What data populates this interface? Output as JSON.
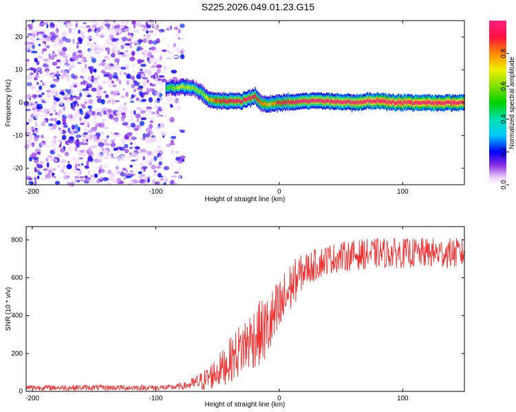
{
  "title": "S225.2026.049.01.23.G15",
  "chart_data": [
    {
      "type": "heatmap",
      "name": "spectrogram",
      "xlabel": "Height of straight line (km)",
      "ylabel": "Frequency (Hz)",
      "xlim": [
        -205,
        150
      ],
      "ylim": [
        -25,
        25
      ],
      "xticks": [
        -200,
        -100,
        0,
        100
      ],
      "yticks": [
        -20,
        -10,
        0,
        10,
        20
      ],
      "colorbar": {
        "label": "Normalized spectral amplitude",
        "range": [
          0,
          1
        ],
        "ticks": [
          0.0,
          0.2,
          0.4,
          0.6,
          0.8
        ],
        "tick_labels": [
          "0.0",
          "0.2",
          "0.4",
          "0.6",
          "0.8"
        ]
      },
      "ridge": [
        {
          "x": -92,
          "f": 4.5,
          "amp": 0.35
        },
        {
          "x": -85,
          "f": 4.5,
          "amp": 0.45
        },
        {
          "x": -78,
          "f": 4.8,
          "amp": 0.5
        },
        {
          "x": -70,
          "f": 4.5,
          "amp": 0.45
        },
        {
          "x": -63,
          "f": 3.0,
          "amp": 0.45
        },
        {
          "x": -58,
          "f": 1.0,
          "amp": 0.55
        },
        {
          "x": -50,
          "f": 0.5,
          "amp": 0.65
        },
        {
          "x": -40,
          "f": 0.5,
          "amp": 0.7
        },
        {
          "x": -30,
          "f": 0.5,
          "amp": 0.72
        },
        {
          "x": -20,
          "f": 2.0,
          "amp": 0.7
        },
        {
          "x": -14,
          "f": -0.5,
          "amp": 0.6
        },
        {
          "x": -8,
          "f": -0.5,
          "amp": 0.55
        },
        {
          "x": 0,
          "f": 0.0,
          "amp": 0.65
        },
        {
          "x": 20,
          "f": 0.5,
          "amp": 0.75
        },
        {
          "x": 40,
          "f": 0.5,
          "amp": 0.8
        },
        {
          "x": 60,
          "f": 0.0,
          "amp": 0.8
        },
        {
          "x": 80,
          "f": 0.5,
          "amp": 0.9
        },
        {
          "x": 100,
          "f": 0.0,
          "amp": 0.9
        },
        {
          "x": 120,
          "f": 0.0,
          "amp": 0.9
        },
        {
          "x": 150,
          "f": 0.0,
          "amp": 0.9
        }
      ]
    },
    {
      "type": "line",
      "name": "snr",
      "xlabel": "Height of straight line (km)",
      "ylabel": "SNR (10 * v/v)",
      "xlim": [
        -205,
        150
      ],
      "ylim": [
        0,
        870
      ],
      "xticks": [
        -200,
        -100,
        0,
        100
      ],
      "yticks": [
        0,
        200,
        400,
        600,
        800
      ],
      "color": "#ee3333",
      "envelope": [
        {
          "x": -205,
          "mean": 20,
          "spread": 15
        },
        {
          "x": -90,
          "mean": 20,
          "spread": 15
        },
        {
          "x": -75,
          "mean": 30,
          "spread": 20
        },
        {
          "x": -60,
          "mean": 60,
          "spread": 60
        },
        {
          "x": -45,
          "mean": 130,
          "spread": 100
        },
        {
          "x": -30,
          "mean": 230,
          "spread": 150
        },
        {
          "x": -20,
          "mean": 290,
          "spread": 170
        },
        {
          "x": -10,
          "mean": 330,
          "spread": 180
        },
        {
          "x": 0,
          "mean": 420,
          "spread": 180
        },
        {
          "x": 10,
          "mean": 560,
          "spread": 130
        },
        {
          "x": 20,
          "mean": 640,
          "spread": 90
        },
        {
          "x": 40,
          "mean": 700,
          "spread": 80
        },
        {
          "x": 60,
          "mean": 720,
          "spread": 80
        },
        {
          "x": 80,
          "mean": 730,
          "spread": 80
        },
        {
          "x": 100,
          "mean": 730,
          "spread": 80
        },
        {
          "x": 120,
          "mean": 730,
          "spread": 80
        },
        {
          "x": 150,
          "mean": 730,
          "spread": 80
        }
      ]
    }
  ]
}
